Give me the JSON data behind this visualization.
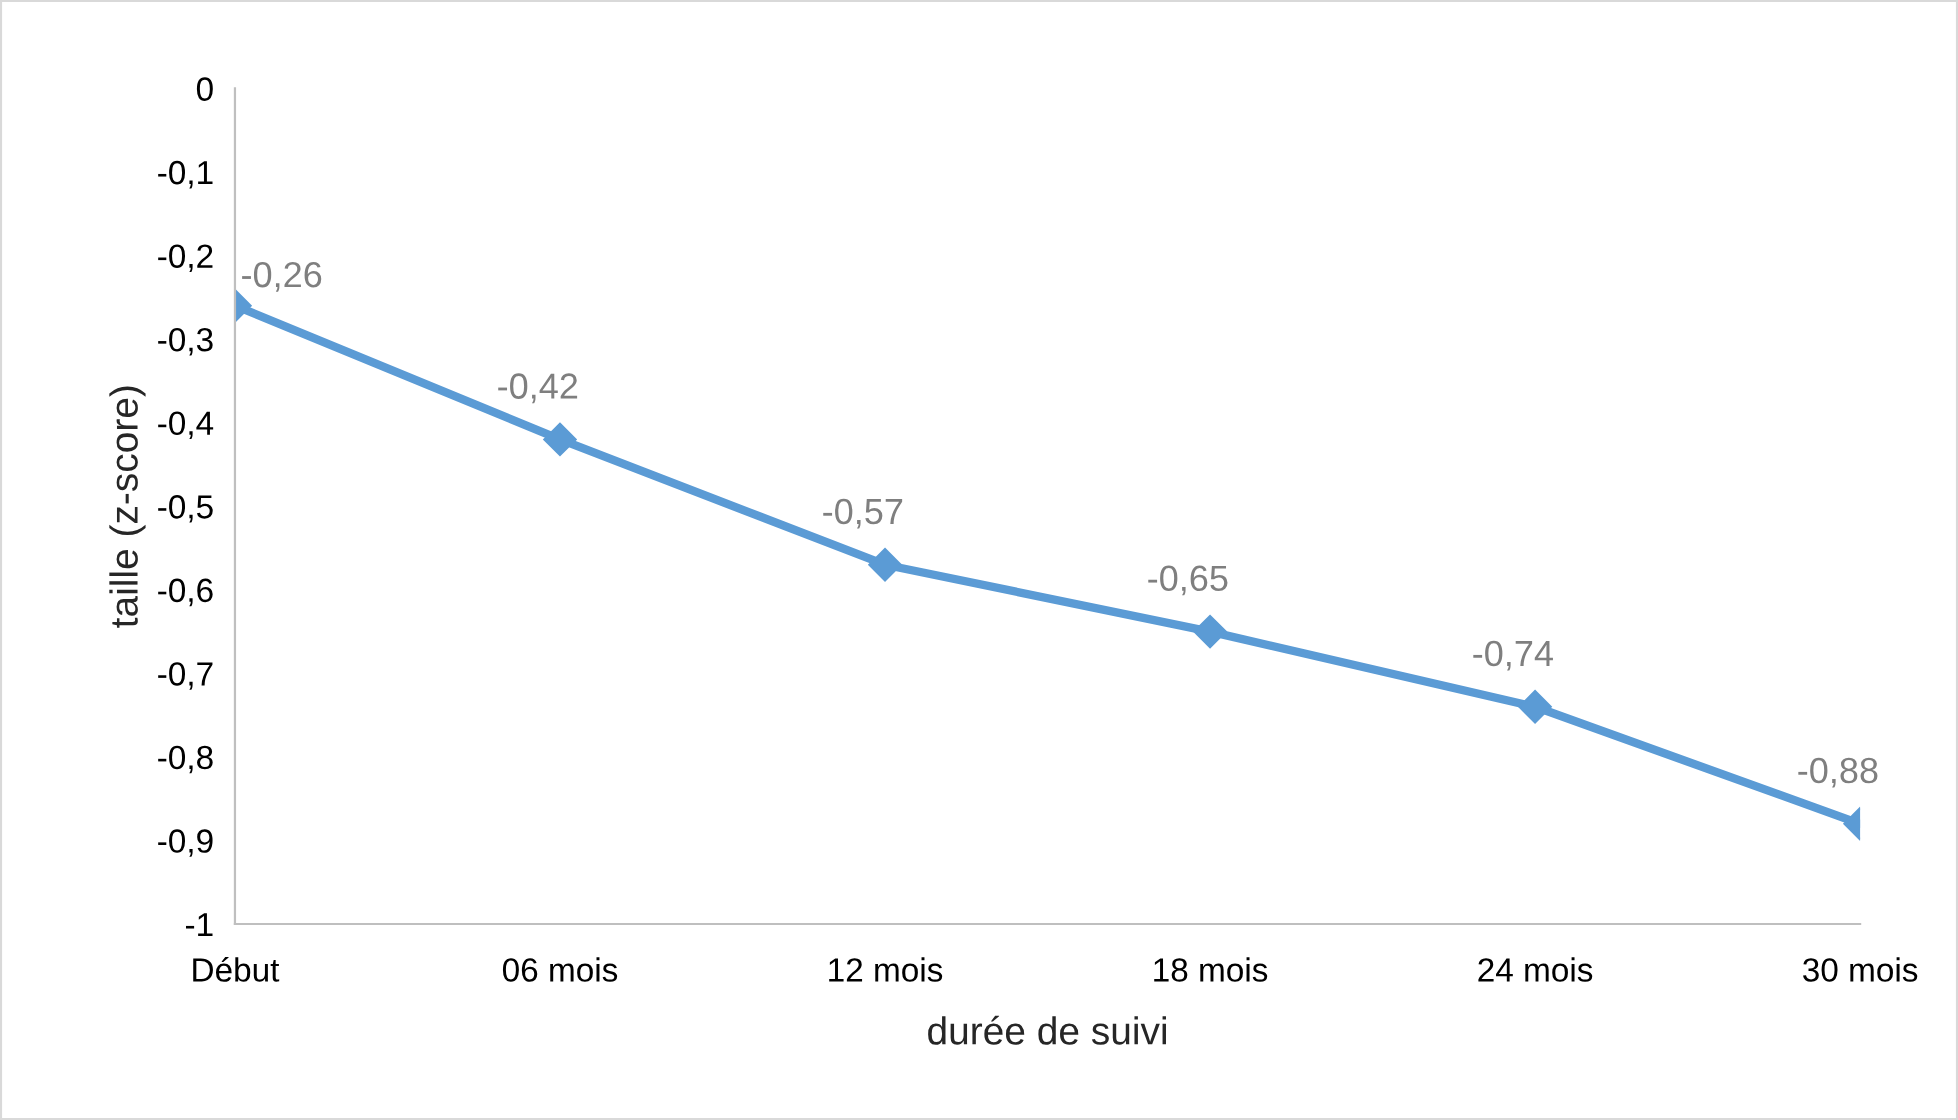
{
  "chart_data": {
    "type": "line",
    "xlabel": "durée de suivi",
    "ylabel": "taille (z-score)",
    "categories": [
      "Début",
      "06 mois",
      "12 mois",
      "18 mois",
      "24 mois",
      "30 mois"
    ],
    "series": [
      {
        "color": "#5b9bd5",
        "values": [
          -0.26,
          -0.42,
          -0.57,
          -0.65,
          -0.74,
          -0.88
        ],
        "value_labels": [
          "-0,26",
          "-0,42",
          "-0,57",
          "-0,65",
          "-0,74",
          "-0,88"
        ]
      }
    ],
    "ylim": [
      -1,
      0
    ],
    "yticks": [
      0,
      {
        "value": -0.1,
        "label": "-0,1"
      },
      {
        "value": -0.2,
        "label": "-0,2"
      },
      {
        "value": -0.3,
        "label": "-0,3"
      },
      {
        "value": -0.4,
        "label": "-0,4"
      },
      {
        "value": -0.5,
        "label": "-0,5"
      },
      {
        "value": -0.6,
        "label": "-0,6"
      },
      {
        "value": -0.7,
        "label": "-0,7"
      },
      {
        "value": -0.8,
        "label": "-0,8"
      },
      {
        "value": -0.9,
        "label": "-0,9"
      },
      -1
    ],
    "marker": "diamond",
    "line_style": "solid",
    "grid": false,
    "legend": false
  }
}
